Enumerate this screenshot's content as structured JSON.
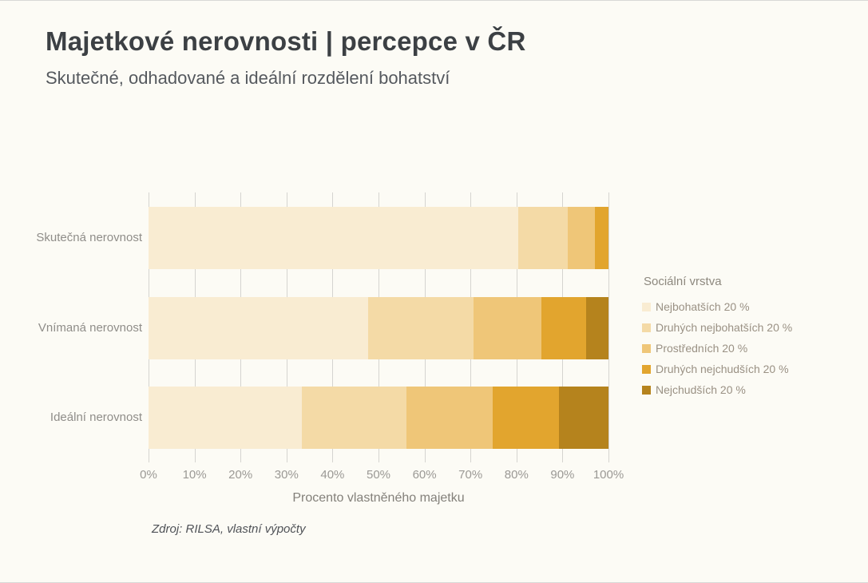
{
  "header": {
    "title": "Majetkové nerovnosti | percepce v ČR",
    "subtitle": "Skutečné, odhadované a ideální rozdělení bohatství"
  },
  "chart_data": {
    "type": "bar",
    "orientation": "horizontal",
    "stacked": true,
    "categories": [
      "Skutečná nerovnost",
      "Vnímaná nerovnost",
      "Ideální nerovnost"
    ],
    "series": [
      {
        "name": "Nejbohatších 20 %",
        "color": "#f9ecd2",
        "values": [
          80.4,
          47.8,
          33.3
        ]
      },
      {
        "name": "Druhých nejbohatších 20 %",
        "color": "#f4daa6",
        "values": [
          10.7,
          22.9,
          22.7
        ]
      },
      {
        "name": "Prostředních 20 %",
        "color": "#efc678",
        "values": [
          5.9,
          14.8,
          18.8
        ]
      },
      {
        "name": "Druhých nejchudších 20 %",
        "color": "#e2a52e",
        "values": [
          3.0,
          9.6,
          14.5
        ]
      },
      {
        "name": "Nejchudších 20 %",
        "color": "#b5831d",
        "values": [
          0.0,
          4.9,
          10.7
        ]
      }
    ],
    "xlabel": "Procento vlastněného majetku",
    "x_ticks": [
      "0%",
      "10%",
      "20%",
      "30%",
      "40%",
      "50%",
      "60%",
      "70%",
      "80%",
      "90%",
      "100%"
    ],
    "xlim": [
      0,
      100
    ],
    "grid": "vertical",
    "legend_title": "Sociální vrstva",
    "legend_position": "right"
  },
  "footer": {
    "source": "Zdroj: RILSA, vlastní výpočty"
  }
}
